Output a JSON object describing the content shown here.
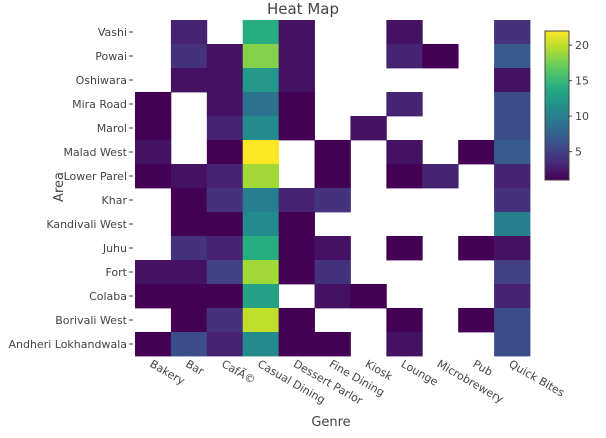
{
  "chart_data": {
    "type": "heatmap",
    "title": "Heat Map",
    "xlabel": "Genre",
    "ylabel": "Area",
    "x": [
      "Bakery",
      "Bar",
      "CafÃ©",
      "Casual Dining",
      "Dessert Parlor",
      "Fine Dining",
      "Kiosk",
      "Lounge",
      "Microbrewery",
      "Pub",
      "Quick Bites"
    ],
    "y": [
      "Vashi",
      "Powai",
      "Oshiwara",
      "Mira Road",
      "Marol",
      "Malad West",
      "Lower Parel",
      "Khar",
      "Kandivali West",
      "Juhu",
      "Fort",
      "Colaba",
      "Borivali West",
      "Andheri Lokhandwala"
    ],
    "z": [
      [
        null,
        3,
        null,
        14,
        2,
        null,
        null,
        2,
        null,
        null,
        4
      ],
      [
        null,
        4,
        2,
        18,
        2,
        null,
        null,
        3,
        1,
        null,
        7
      ],
      [
        null,
        2,
        2,
        12,
        2,
        null,
        null,
        null,
        null,
        null,
        2
      ],
      [
        1,
        null,
        2,
        9,
        1,
        null,
        null,
        3,
        null,
        null,
        6
      ],
      [
        1,
        null,
        3,
        11,
        1,
        null,
        2,
        null,
        null,
        null,
        6
      ],
      [
        2,
        null,
        1,
        22,
        null,
        1,
        null,
        2,
        null,
        1,
        7
      ],
      [
        1,
        2,
        3,
        19,
        null,
        1,
        null,
        1,
        3,
        null,
        3
      ],
      [
        null,
        1,
        4,
        10,
        3,
        4,
        null,
        null,
        null,
        null,
        4
      ],
      [
        null,
        1,
        1,
        11,
        1,
        null,
        null,
        null,
        null,
        null,
        10
      ],
      [
        null,
        4,
        3,
        14,
        1,
        2,
        null,
        1,
        null,
        1,
        2
      ],
      [
        2,
        2,
        5,
        19,
        1,
        4,
        null,
        null,
        null,
        null,
        5
      ],
      [
        1,
        1,
        1,
        13,
        null,
        2,
        1,
        null,
        null,
        null,
        3
      ],
      [
        null,
        1,
        4,
        20,
        1,
        null,
        null,
        1,
        null,
        1,
        6
      ],
      [
        1,
        6,
        3,
        11,
        1,
        1,
        null,
        2,
        null,
        null,
        6
      ]
    ],
    "zmin": 1,
    "zmax": 22,
    "colorscale": "viridis",
    "colorbar_ticks": [
      5,
      10,
      15,
      20
    ],
    "grid": false,
    "legend": "colorbar-right"
  }
}
